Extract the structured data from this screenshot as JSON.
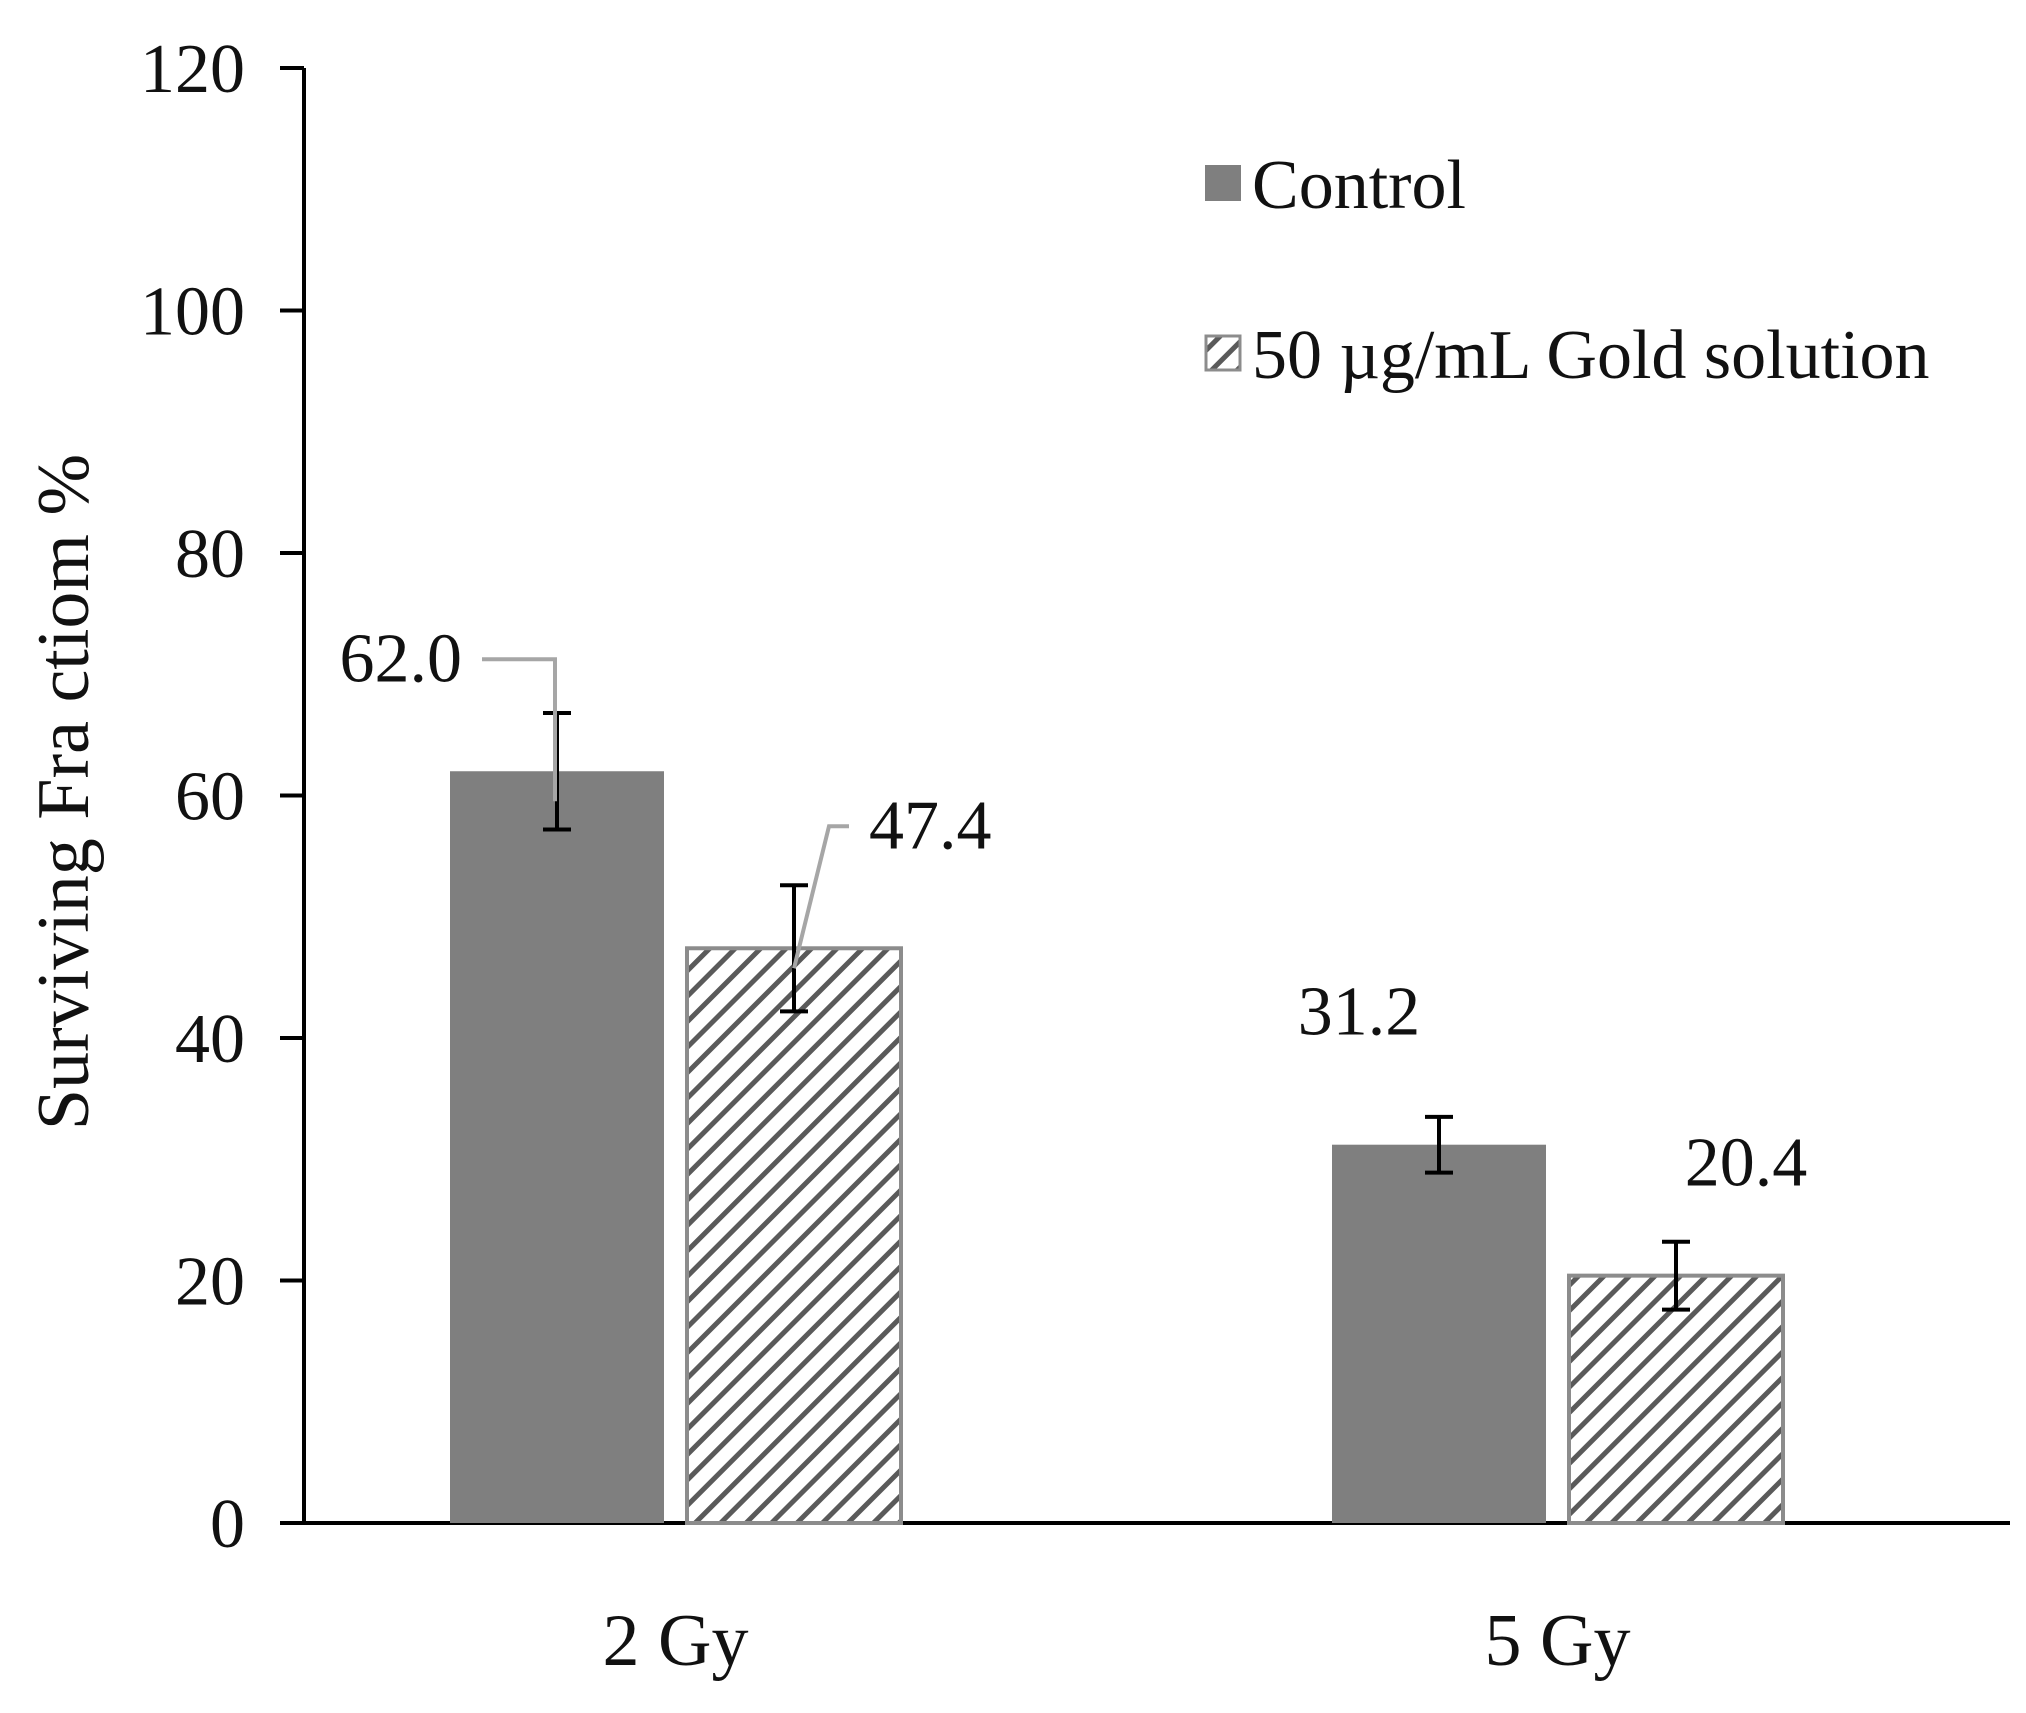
{
  "chart_data": {
    "type": "bar",
    "title": "",
    "xlabel": "",
    "ylabel": "Surviving Fra ctiom %",
    "ylim": [
      0,
      120
    ],
    "yticks": [
      0,
      20,
      40,
      60,
      80,
      100,
      120
    ],
    "ytick_labels": [
      "0",
      "20",
      "40",
      "60",
      "80",
      "100",
      "120"
    ],
    "grid": false,
    "legend_position": "top-right",
    "categories": [
      "2 Gy",
      "5 Gy"
    ],
    "series": [
      {
        "name": "Control",
        "pattern": "solid",
        "values": [
          62.0,
          31.2
        ],
        "value_labels": [
          "62.0",
          "31.2"
        ],
        "error": [
          4.8,
          2.3
        ]
      },
      {
        "name": "50 µg/mL Gold solution",
        "pattern": "hatched",
        "values": [
          47.4,
          20.4
        ],
        "value_labels": [
          "47.4",
          "20.4"
        ],
        "error": [
          5.2,
          2.8
        ]
      }
    ]
  },
  "colors": {
    "control_fill": "#7f7f7f",
    "gold_outline": "#8c8c8c",
    "hatch": "#5a5a5a",
    "axis": "#000000",
    "leader": "#a6a6a6",
    "text": "#111111"
  }
}
